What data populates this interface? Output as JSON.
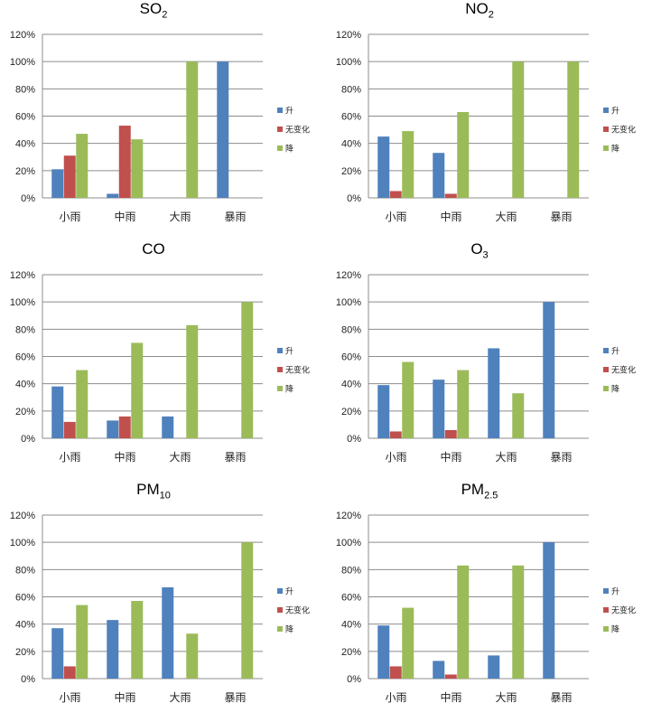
{
  "colors": {
    "up": "#4F81BD",
    "nochange": "#C0504D",
    "down": "#9BBB59"
  },
  "legend": [
    "升",
    "无变化",
    "降"
  ],
  "chart_data": [
    {
      "type": "bar",
      "title_main": "SO",
      "title_sub": "2",
      "categories": [
        "小雨",
        "中雨",
        "大雨",
        "暴雨"
      ],
      "yticks": [
        "0%",
        "20%",
        "40%",
        "60%",
        "80%",
        "100%",
        "120%"
      ],
      "ylim": [
        0,
        120
      ],
      "series": [
        {
          "name": "升",
          "values": [
            21,
            3,
            0,
            100
          ]
        },
        {
          "name": "无变化",
          "values": [
            31,
            53,
            0,
            0
          ]
        },
        {
          "name": "降",
          "values": [
            47,
            43,
            100,
            0
          ]
        }
      ]
    },
    {
      "type": "bar",
      "title_main": "NO",
      "title_sub": "2",
      "categories": [
        "小雨",
        "中雨",
        "大雨",
        "暴雨"
      ],
      "yticks": [
        "0%",
        "20%",
        "40%",
        "60%",
        "80%",
        "100%",
        "120%"
      ],
      "ylim": [
        0,
        120
      ],
      "series": [
        {
          "name": "升",
          "values": [
            45,
            33,
            0,
            0
          ]
        },
        {
          "name": "无变化",
          "values": [
            5,
            3,
            0,
            0
          ]
        },
        {
          "name": "降",
          "values": [
            49,
            63,
            100,
            100
          ]
        }
      ]
    },
    {
      "type": "bar",
      "title_main": "CO",
      "title_sub": "",
      "categories": [
        "小雨",
        "中雨",
        "大雨",
        "暴雨"
      ],
      "yticks": [
        "0%",
        "20%",
        "40%",
        "60%",
        "80%",
        "100%",
        "120%"
      ],
      "ylim": [
        0,
        120
      ],
      "series": [
        {
          "name": "升",
          "values": [
            38,
            13,
            16,
            0
          ]
        },
        {
          "name": "无变化",
          "values": [
            12,
            16,
            0,
            0
          ]
        },
        {
          "name": "降",
          "values": [
            50,
            70,
            83,
            100
          ]
        }
      ]
    },
    {
      "type": "bar",
      "title_main": "O",
      "title_sub": "3",
      "categories": [
        "小雨",
        "中雨",
        "大雨",
        "暴雨"
      ],
      "yticks": [
        "0%",
        "20%",
        "40%",
        "60%",
        "80%",
        "100%",
        "120%"
      ],
      "ylim": [
        0,
        120
      ],
      "series": [
        {
          "name": "升",
          "values": [
            39,
            43,
            66,
            100
          ]
        },
        {
          "name": "无变化",
          "values": [
            5,
            6,
            0,
            0
          ]
        },
        {
          "name": "降",
          "values": [
            56,
            50,
            33,
            0
          ]
        }
      ]
    },
    {
      "type": "bar",
      "title_main": "PM",
      "title_sub": "10",
      "categories": [
        "小雨",
        "中雨",
        "大雨",
        "暴雨"
      ],
      "yticks": [
        "0%",
        "20%",
        "40%",
        "60%",
        "80%",
        "100%",
        "120%"
      ],
      "ylim": [
        0,
        120
      ],
      "series": [
        {
          "name": "升",
          "values": [
            37,
            43,
            67,
            0
          ]
        },
        {
          "name": "无变化",
          "values": [
            9,
            0,
            0,
            0
          ]
        },
        {
          "name": "降",
          "values": [
            54,
            57,
            33,
            100
          ]
        }
      ]
    },
    {
      "type": "bar",
      "title_main": "PM",
      "title_sub": "2.5",
      "categories": [
        "小雨",
        "中雨",
        "大雨",
        "暴雨"
      ],
      "yticks": [
        "0%",
        "20%",
        "40%",
        "60%",
        "80%",
        "100%",
        "120%"
      ],
      "ylim": [
        0,
        120
      ],
      "series": [
        {
          "name": "升",
          "values": [
            39,
            13,
            17,
            100
          ]
        },
        {
          "name": "无变化",
          "values": [
            9,
            3,
            0,
            0
          ]
        },
        {
          "name": "降",
          "values": [
            52,
            83,
            83,
            0
          ]
        }
      ]
    }
  ]
}
